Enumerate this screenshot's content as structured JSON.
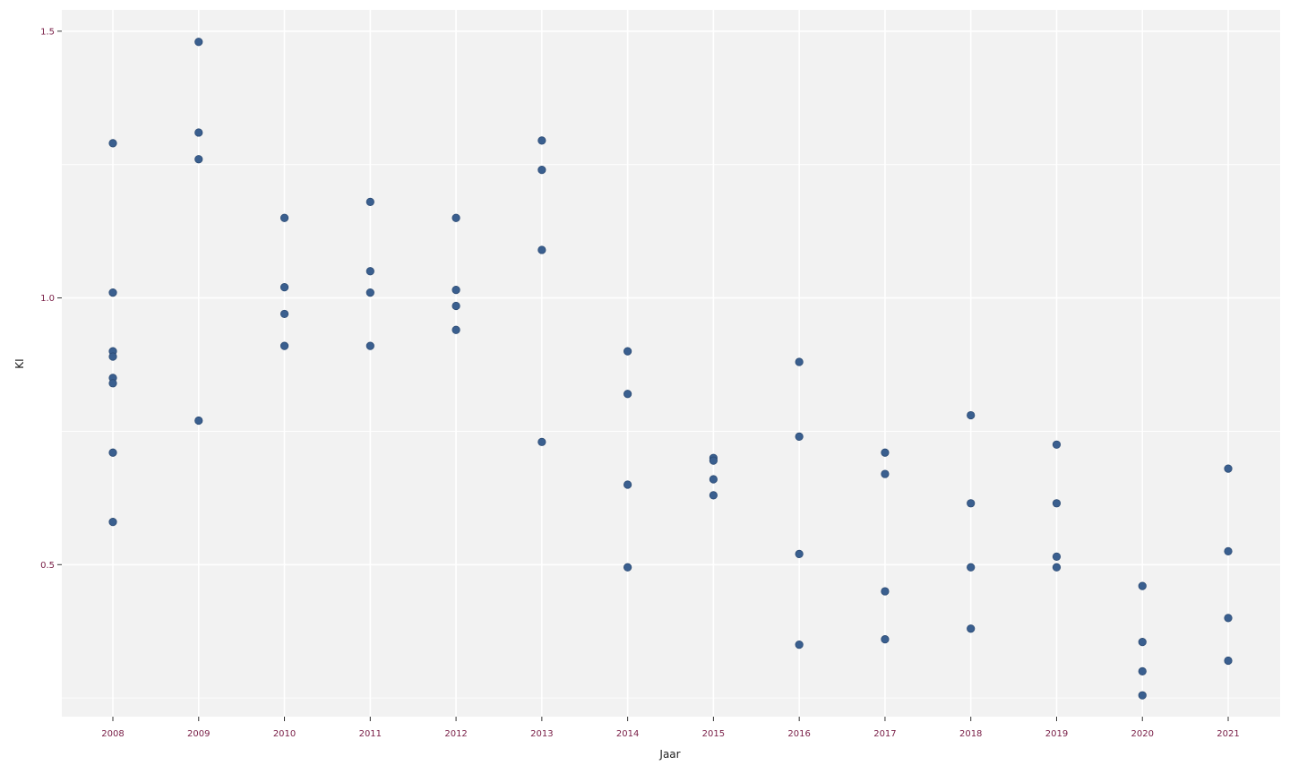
{
  "chart_data": {
    "type": "scatter",
    "title": "",
    "xlabel": "Jaar",
    "ylabel": "KI",
    "categories": [
      "2008",
      "2009",
      "2010",
      "2011",
      "2012",
      "2013",
      "2014",
      "2015",
      "2016",
      "2017",
      "2018",
      "2019",
      "2020",
      "2021"
    ],
    "y_ticks": [
      "0.5",
      "1.0",
      "1.5"
    ],
    "ylim": [
      0.215,
      1.54
    ],
    "grid": true,
    "colors": {
      "point": "#3a5f8f",
      "panel": "#f2f2f2",
      "grid": "#ffffff",
      "tick_label": "#7a2048"
    },
    "points": [
      {
        "x": "2008",
        "y": 1.29
      },
      {
        "x": "2008",
        "y": 1.01
      },
      {
        "x": "2008",
        "y": 0.9
      },
      {
        "x": "2008",
        "y": 0.89
      },
      {
        "x": "2008",
        "y": 0.85
      },
      {
        "x": "2008",
        "y": 0.84
      },
      {
        "x": "2008",
        "y": 0.71
      },
      {
        "x": "2008",
        "y": 0.58
      },
      {
        "x": "2009",
        "y": 1.48
      },
      {
        "x": "2009",
        "y": 1.31
      },
      {
        "x": "2009",
        "y": 1.26
      },
      {
        "x": "2009",
        "y": 0.77
      },
      {
        "x": "2010",
        "y": 1.15
      },
      {
        "x": "2010",
        "y": 1.02
      },
      {
        "x": "2010",
        "y": 0.97
      },
      {
        "x": "2010",
        "y": 0.91
      },
      {
        "x": "2011",
        "y": 1.18
      },
      {
        "x": "2011",
        "y": 1.05
      },
      {
        "x": "2011",
        "y": 1.01
      },
      {
        "x": "2011",
        "y": 0.91
      },
      {
        "x": "2012",
        "y": 1.15
      },
      {
        "x": "2012",
        "y": 1.015
      },
      {
        "x": "2012",
        "y": 0.985
      },
      {
        "x": "2012",
        "y": 0.94
      },
      {
        "x": "2013",
        "y": 1.295
      },
      {
        "x": "2013",
        "y": 1.24
      },
      {
        "x": "2013",
        "y": 1.09
      },
      {
        "x": "2013",
        "y": 0.73
      },
      {
        "x": "2014",
        "y": 0.9
      },
      {
        "x": "2014",
        "y": 0.82
      },
      {
        "x": "2014",
        "y": 0.65
      },
      {
        "x": "2014",
        "y": 0.495
      },
      {
        "x": "2015",
        "y": 0.7
      },
      {
        "x": "2015",
        "y": 0.695
      },
      {
        "x": "2015",
        "y": 0.66
      },
      {
        "x": "2015",
        "y": 0.63
      },
      {
        "x": "2016",
        "y": 0.88
      },
      {
        "x": "2016",
        "y": 0.74
      },
      {
        "x": "2016",
        "y": 0.52
      },
      {
        "x": "2016",
        "y": 0.35
      },
      {
        "x": "2017",
        "y": 0.71
      },
      {
        "x": "2017",
        "y": 0.67
      },
      {
        "x": "2017",
        "y": 0.45
      },
      {
        "x": "2017",
        "y": 0.36
      },
      {
        "x": "2018",
        "y": 0.78
      },
      {
        "x": "2018",
        "y": 0.615
      },
      {
        "x": "2018",
        "y": 0.495
      },
      {
        "x": "2018",
        "y": 0.38
      },
      {
        "x": "2019",
        "y": 0.725
      },
      {
        "x": "2019",
        "y": 0.615
      },
      {
        "x": "2019",
        "y": 0.515
      },
      {
        "x": "2019",
        "y": 0.495
      },
      {
        "x": "2020",
        "y": 0.46
      },
      {
        "x": "2020",
        "y": 0.355
      },
      {
        "x": "2020",
        "y": 0.3
      },
      {
        "x": "2020",
        "y": 0.255
      },
      {
        "x": "2021",
        "y": 0.68
      },
      {
        "x": "2021",
        "y": 0.525
      },
      {
        "x": "2021",
        "y": 0.4
      },
      {
        "x": "2021",
        "y": 0.32
      }
    ]
  }
}
